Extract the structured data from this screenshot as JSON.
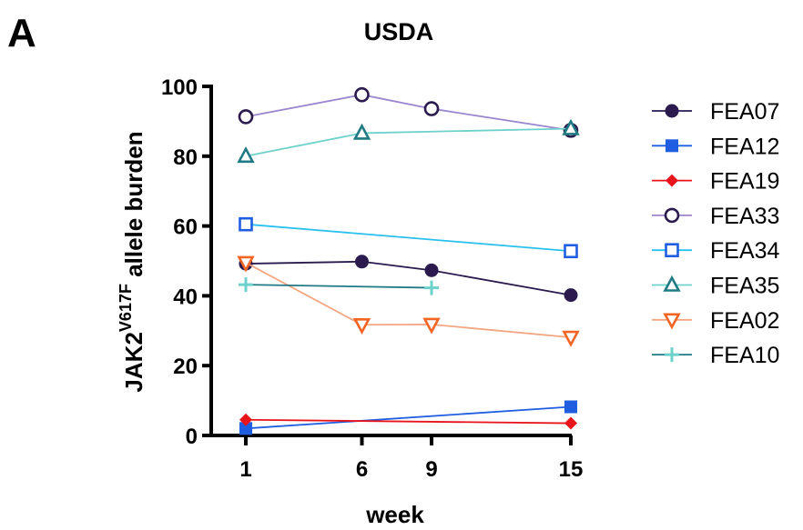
{
  "chart_data": {
    "type": "line",
    "panel_label": "A",
    "title": "USDA",
    "xlabel": "week",
    "ylabel": {
      "prefix": "JAK2",
      "superscript": "V617F",
      "suffix": " allele burden"
    },
    "xlim": [
      1,
      15
    ],
    "ylim": [
      0,
      100
    ],
    "xticks": [
      1,
      6,
      9,
      15
    ],
    "yticks": [
      0,
      20,
      40,
      60,
      80,
      100
    ],
    "grid": false,
    "legend_position": "right",
    "series": [
      {
        "name": "FEA07",
        "color": "#2a1a4e",
        "marker": "circle-filled",
        "points": [
          [
            1,
            49.2
          ],
          [
            6,
            49.8
          ],
          [
            9,
            47.3
          ],
          [
            15,
            40.2
          ]
        ]
      },
      {
        "name": "FEA12",
        "color": "#1f5ee0",
        "marker": "square-filled",
        "points": [
          [
            1,
            2.0
          ],
          [
            15,
            8.2
          ]
        ]
      },
      {
        "name": "FEA19",
        "color": "#e8141c",
        "marker": "diamond-filled",
        "points": [
          [
            1,
            4.5
          ],
          [
            15,
            3.5
          ]
        ]
      },
      {
        "name": "FEA33",
        "color": "#9b86cf",
        "marker_color": "#2a1a4e",
        "marker": "circle-open",
        "points": [
          [
            1,
            91.3
          ],
          [
            6,
            97.6
          ],
          [
            9,
            93.6
          ],
          [
            15,
            87.4
          ]
        ]
      },
      {
        "name": "FEA34",
        "color": "#29c0ee",
        "marker_color": "#1f5ee0",
        "marker": "square-open",
        "points": [
          [
            1,
            60.5
          ],
          [
            15,
            52.8
          ]
        ]
      },
      {
        "name": "FEA35",
        "color": "#6fd1cc",
        "marker_color": "#1f7a84",
        "marker": "triangle-up-open",
        "points": [
          [
            1,
            80.0
          ],
          [
            6,
            86.6
          ],
          [
            15,
            87.9
          ]
        ]
      },
      {
        "name": "FEA02",
        "color": "#f4a582",
        "marker_color": "#f26522",
        "marker": "triangle-down-open",
        "points": [
          [
            1,
            49.5
          ],
          [
            6,
            31.7
          ],
          [
            9,
            31.8
          ],
          [
            15,
            28.1
          ]
        ]
      },
      {
        "name": "FEA10",
        "color": "#1f7a84",
        "marker_color": "#6fd1cc",
        "marker": "plus",
        "points": [
          [
            1,
            43.2
          ],
          [
            9,
            42.3
          ]
        ]
      }
    ]
  }
}
